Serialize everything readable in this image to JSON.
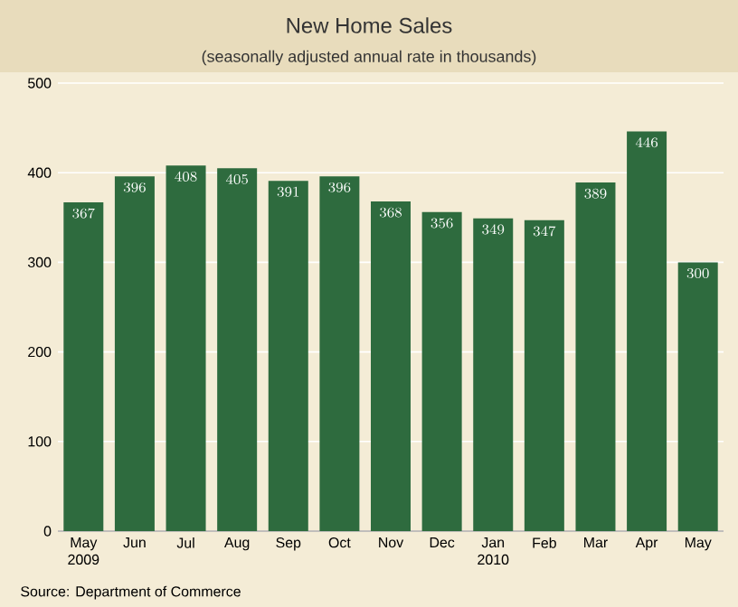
{
  "chart_data": {
    "type": "bar",
    "title": "New Home Sales",
    "subtitle": "(seasonally adjusted annual rate in thousands)",
    "categories": [
      "May 2009",
      "Jun",
      "Jul",
      "Aug",
      "Sep",
      "Oct",
      "Nov",
      "Dec",
      "Jan 2010",
      "Feb",
      "Mar",
      "Apr",
      "May"
    ],
    "values": [
      367,
      396,
      408,
      405,
      391,
      396,
      368,
      356,
      349,
      347,
      389,
      446,
      300
    ],
    "color": "#2e6b3e",
    "ylim": [
      0,
      500
    ],
    "yticks": [
      0,
      100,
      200,
      300,
      400,
      500
    ],
    "grid": "y",
    "data_labels": true,
    "annotations": [
      "Source: Department of Commerce"
    ]
  }
}
